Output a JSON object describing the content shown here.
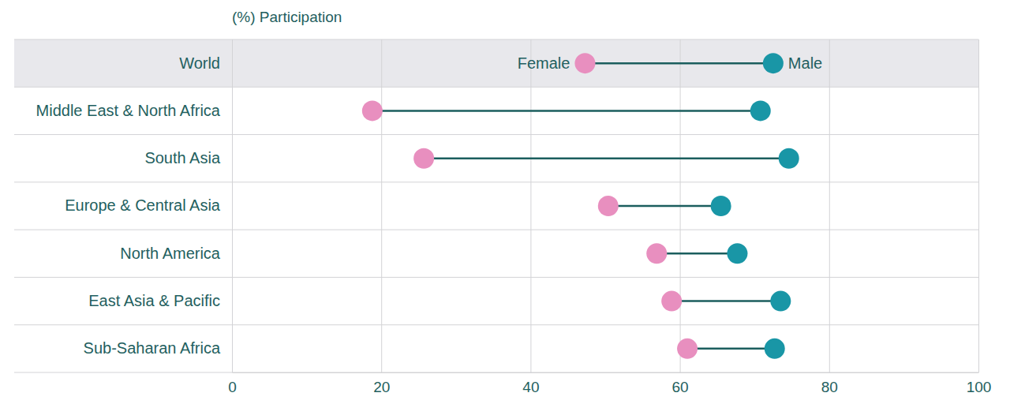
{
  "chart_data": {
    "type": "dumbbell",
    "xlabel": "(%) Participation",
    "categories": [
      "World",
      "Middle East & North Africa",
      "South Asia",
      "Europe & Central Asia",
      "North America",
      "East Asia & Pacific",
      "Sub-Saharan Africa"
    ],
    "series": [
      {
        "name": "Female",
        "color": "#e88fbf",
        "values": [
          47.3,
          18.8,
          25.7,
          50.4,
          56.9,
          58.9,
          61.0
        ]
      },
      {
        "name": "Male",
        "color": "#1996a6",
        "values": [
          72.5,
          70.8,
          74.6,
          65.5,
          67.7,
          73.5,
          72.7
        ]
      }
    ],
    "xlim": [
      0,
      100
    ],
    "xticks": [
      0,
      20,
      40,
      60,
      80,
      100
    ],
    "grid": true
  }
}
